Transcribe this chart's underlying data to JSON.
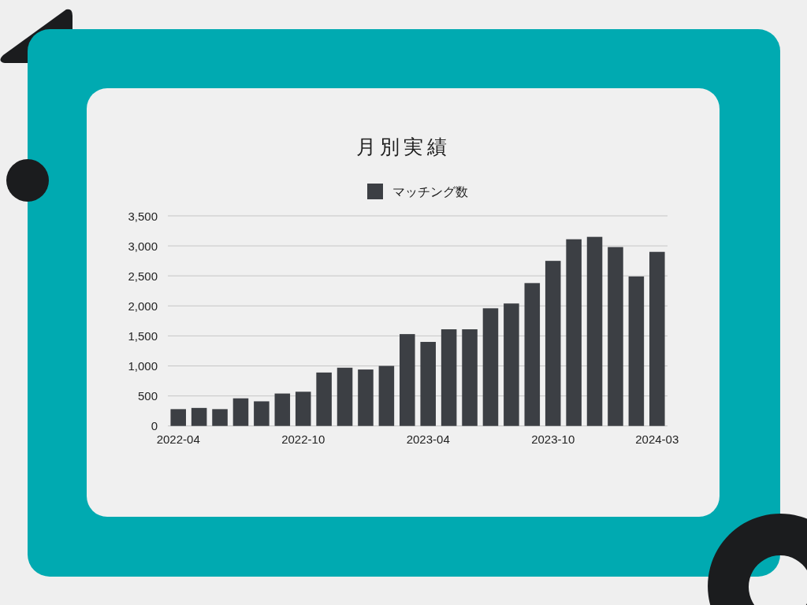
{
  "chart_data": {
    "type": "bar",
    "title": "月別実績",
    "categories": [
      "2022-04",
      null,
      null,
      null,
      null,
      null,
      "2022-10",
      null,
      null,
      null,
      null,
      null,
      "2023-04",
      null,
      null,
      null,
      null,
      null,
      "2023-10",
      null,
      null,
      null,
      null,
      "2024-03"
    ],
    "series": [
      {
        "name": "マッチング数",
        "color": "#3c3f44",
        "values": [
          280,
          300,
          280,
          460,
          410,
          540,
          570,
          890,
          970,
          940,
          1000,
          1530,
          1400,
          1610,
          1610,
          1960,
          2040,
          2380,
          2750,
          3110,
          3150,
          2980,
          2490,
          2900
        ]
      }
    ],
    "ylim": [
      0,
      3500
    ],
    "yticks": [
      0,
      500,
      {
        "value": 1000,
        "label": "1,000"
      },
      {
        "value": 1500,
        "label": "1,500"
      },
      {
        "value": 2000,
        "label": "2,000"
      },
      {
        "value": 2500,
        "label": "2,500"
      },
      {
        "value": 3000,
        "label": "3,000"
      },
      {
        "value": 3500,
        "label": "3,500"
      }
    ],
    "grid": "y",
    "legend": "top"
  }
}
